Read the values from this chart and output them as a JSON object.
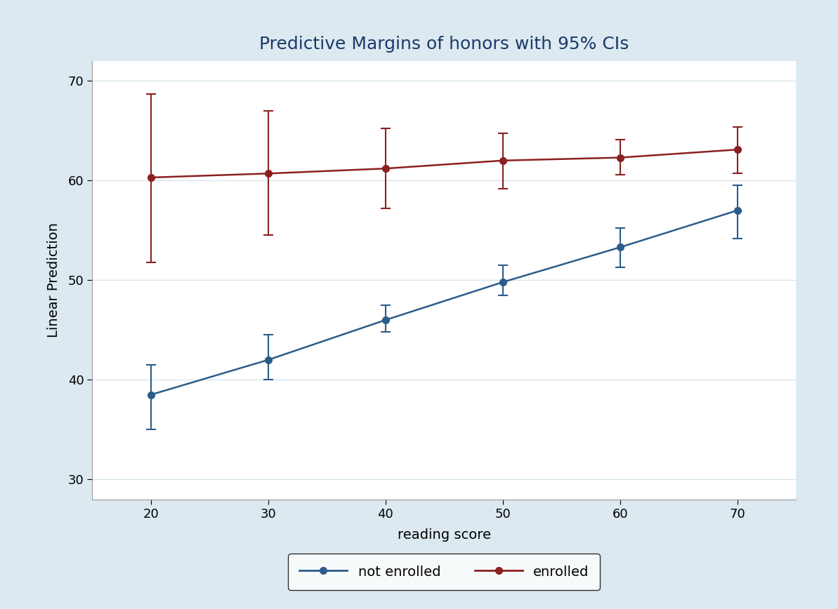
{
  "title": "Predictive Margins of honors with 95% CIs",
  "xlabel": "reading score",
  "ylabel": "Linear Prediction",
  "background_color": "#dce9f0",
  "plot_background": "#ffffff",
  "x": [
    20,
    30,
    40,
    50,
    60,
    70
  ],
  "not_enrolled": {
    "y": [
      38.5,
      42.0,
      46.0,
      49.8,
      53.3,
      57.0
    ],
    "y_lower": [
      35.0,
      40.0,
      44.8,
      48.5,
      51.3,
      54.2
    ],
    "y_upper": [
      41.5,
      44.5,
      47.5,
      51.5,
      55.2,
      59.5
    ],
    "color": "#2b5c8a",
    "label": "not enrolled"
  },
  "enrolled": {
    "y": [
      60.3,
      60.7,
      61.2,
      62.0,
      62.3,
      63.1
    ],
    "y_lower": [
      51.8,
      54.5,
      57.2,
      59.2,
      60.6,
      60.7
    ],
    "y_upper": [
      68.7,
      67.0,
      65.2,
      64.7,
      64.1,
      65.4
    ],
    "color": "#8b2020",
    "label": "enrolled"
  },
  "ylim": [
    28,
    72
  ],
  "xlim": [
    15,
    75
  ],
  "yticks": [
    30,
    40,
    50,
    60,
    70
  ],
  "xticks": [
    20,
    30,
    40,
    50,
    60,
    70
  ],
  "grid_color": "#d5e4ef",
  "title_color": "#1a3a6b",
  "title_fontsize": 18,
  "axis_label_fontsize": 14,
  "tick_fontsize": 13,
  "legend_fontsize": 14
}
